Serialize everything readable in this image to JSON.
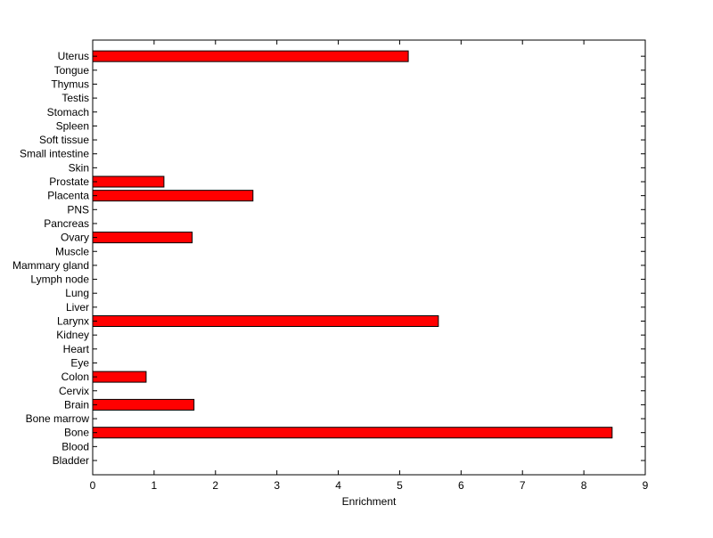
{
  "chart_data": {
    "type": "bar",
    "orientation": "horizontal",
    "title": "",
    "xlabel": "Enrichment",
    "ylabel": "",
    "xlim": [
      0,
      9
    ],
    "xticks": [
      0,
      1,
      2,
      3,
      4,
      5,
      6,
      7,
      8,
      9
    ],
    "grid": false,
    "legend": "none",
    "bar_color": "#ff0000",
    "categories": [
      "Bladder",
      "Blood",
      "Bone",
      "Bone marrow",
      "Brain",
      "Cervix",
      "Colon",
      "Eye",
      "Heart",
      "Kidney",
      "Larynx",
      "Liver",
      "Lung",
      "Lymph node",
      "Mammary gland",
      "Muscle",
      "Ovary",
      "Pancreas",
      "PNS",
      "Placenta",
      "Prostate",
      "Skin",
      "Small intestine",
      "Soft tissue",
      "Spleen",
      "Stomach",
      "Testis",
      "Thymus",
      "Tongue",
      "Uterus"
    ],
    "values": [
      0,
      0,
      8.46,
      0,
      1.65,
      0,
      0.87,
      0,
      0,
      0,
      5.63,
      0,
      0,
      0,
      0,
      0,
      1.62,
      0,
      0,
      2.61,
      1.16,
      0,
      0,
      0,
      0,
      0,
      0,
      0,
      0,
      5.14
    ]
  }
}
